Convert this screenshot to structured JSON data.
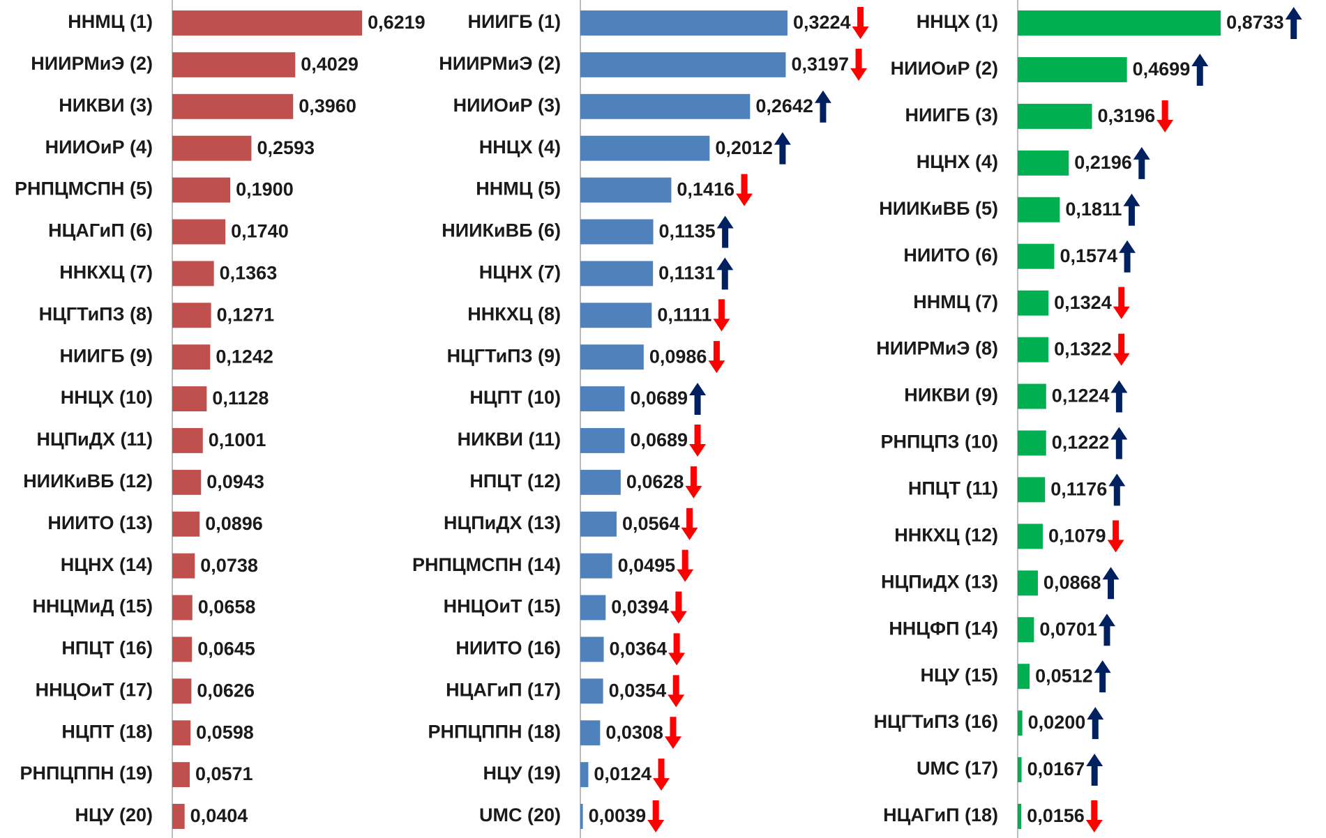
{
  "chart_data": [
    {
      "type": "bar",
      "orientation": "horizontal",
      "color": "#c0504d",
      "xlim": [
        0,
        0.8
      ],
      "categories": [
        "ННМЦ (1)",
        "НИИРМиЭ (2)",
        "НИКВИ (3)",
        "НИИОиР (4)",
        "РНПЦМСПН (5)",
        "НЦАГиП (6)",
        "ННКХЦ (7)",
        "НЦГТиПЗ (8)",
        "НИИГБ (9)",
        "ННЦХ (10)",
        "НЦПиДХ (11)",
        "НИИКиВБ (12)",
        "НИИТО (13)",
        "НЦНХ (14)",
        "ННЦМиД (15)",
        "НПЦТ (16)",
        "ННЦОиТ (17)",
        "НЦПТ (18)",
        "РНПЦППН (19)",
        "НЦУ (20)"
      ],
      "values": [
        0.6219,
        0.4029,
        0.396,
        0.2593,
        0.19,
        0.174,
        0.1363,
        0.1271,
        0.1242,
        0.1128,
        0.1001,
        0.0943,
        0.0896,
        0.0738,
        0.0658,
        0.0645,
        0.0626,
        0.0598,
        0.0571,
        0.0404
      ],
      "value_labels": [
        "0,6219",
        "0,4029",
        "0,3960",
        "0,2593",
        "0,1900",
        "0,1740",
        "0,1363",
        "0,1271",
        "0,1242",
        "0,1128",
        "0,1001",
        "0,0943",
        "0,0896",
        "0,0738",
        "0,0658",
        "0,0645",
        "0,0626",
        "0,0598",
        "0,0571",
        "0,0404"
      ]
    },
    {
      "type": "bar",
      "orientation": "horizontal",
      "color": "#4f81bd",
      "xlim": [
        0,
        0.38
      ],
      "arrow_colors": {
        "up": "#002060",
        "down": "#ff0000"
      },
      "categories": [
        "НИИГБ (1)",
        "НИИРМиЭ (2)",
        "НИИОиР (3)",
        "ННЦХ (4)",
        "ННМЦ (5)",
        "НИИКиВБ (6)",
        "НЦНХ (7)",
        "ННКХЦ (8)",
        "НЦГТиПЗ (9)",
        "НЦПТ (10)",
        "НИКВИ (11)",
        "НПЦТ (12)",
        "НЦПиДХ (13)",
        "РНПЦМСПН (14)",
        "ННЦОиТ (15)",
        "НИИТО (16)",
        "НЦАГиП (17)",
        "РНПЦППН (18)",
        "НЦУ (19)",
        "UMC (20)"
      ],
      "values": [
        0.3224,
        0.3197,
        0.2642,
        0.2012,
        0.1416,
        0.1135,
        0.1131,
        0.1111,
        0.0986,
        0.0689,
        0.0689,
        0.0628,
        0.0564,
        0.0495,
        0.0394,
        0.0364,
        0.0354,
        0.0308,
        0.0124,
        0.0039
      ],
      "value_labels": [
        "0,3224",
        "0,3197",
        "0,2642",
        "0,2012",
        "0,1416",
        "0,1135",
        "0,1131",
        "0,1111",
        "0,0986",
        "0,0689",
        "0,0689",
        "0,0628",
        "0,0564",
        "0,0495",
        "0,0394",
        "0,0364",
        "0,0354",
        "0,0308",
        "0,0124",
        "0,0039"
      ],
      "trend": [
        "down",
        "down",
        "up",
        "up",
        "down",
        "up",
        "up",
        "down",
        "down",
        "up",
        "down",
        "down",
        "down",
        "down",
        "down",
        "down",
        "down",
        "down",
        "down",
        "down"
      ]
    },
    {
      "type": "bar",
      "orientation": "horizontal",
      "color": "#00b050",
      "xlim": [
        0,
        1.05
      ],
      "arrow_colors": {
        "up": "#002060",
        "down": "#ff0000"
      },
      "categories": [
        "ННЦХ (1)",
        "НИИОиР (2)",
        "НИИГБ (3)",
        "НЦНХ (4)",
        "НИИКиВБ (5)",
        "НИИТО (6)",
        "ННМЦ (7)",
        "НИИРМиЭ (8)",
        "НИКВИ (9)",
        "РНПЦПЗ (10)",
        "НПЦТ (11)",
        "ННКХЦ (12)",
        "НЦПиДХ (13)",
        "ННЦФП (14)",
        "НЦУ (15)",
        "НЦГТиПЗ (16)",
        "UMC (17)",
        "НЦАГиП (18)"
      ],
      "values": [
        0.8733,
        0.4699,
        0.3196,
        0.2196,
        0.1811,
        0.1574,
        0.1324,
        0.1322,
        0.1224,
        0.1222,
        0.1176,
        0.1079,
        0.0868,
        0.0701,
        0.0512,
        0.02,
        0.0167,
        0.0156
      ],
      "value_labels": [
        "0,8733",
        "0,4699",
        "0,3196",
        "0,2196",
        "0,1811",
        "0,1574",
        "0,1324",
        "0,1322",
        "0,1224",
        "0,1222",
        "0,1176",
        "0,1079",
        "0,0868",
        "0,0701",
        "0,0512",
        "0,0200",
        "0,0167",
        "0,0156"
      ],
      "trend": [
        "up",
        "up",
        "down",
        "up",
        "up",
        "up",
        "down",
        "down",
        "up",
        "up",
        "up",
        "down",
        "up",
        "up",
        "up",
        "up",
        "up",
        "down"
      ]
    }
  ]
}
